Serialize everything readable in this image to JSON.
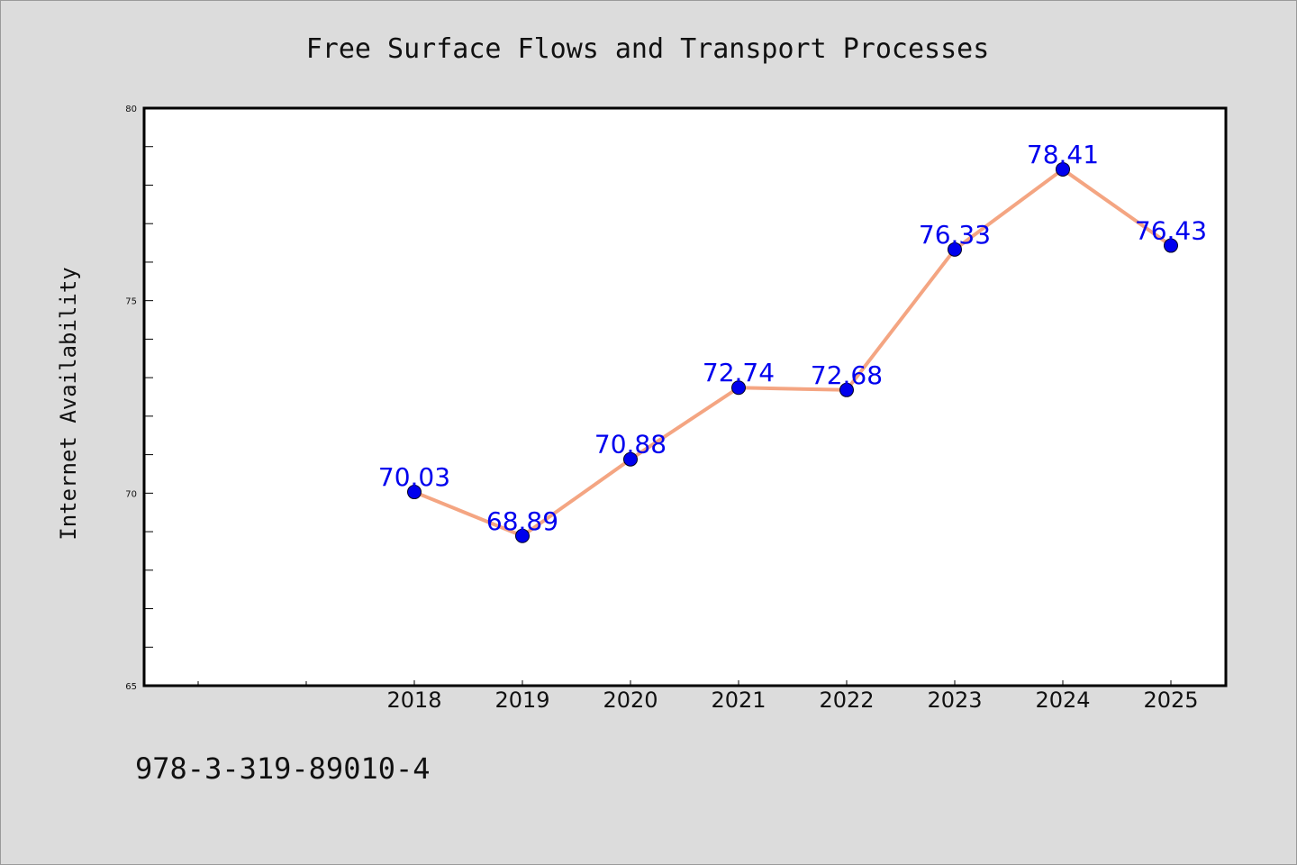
{
  "chart_data": {
    "type": "line",
    "title": "Free Surface Flows and Transport Processes",
    "xlabel": "",
    "ylabel": "Internet Availability",
    "x": [
      "2018",
      "2019",
      "2020",
      "2021",
      "2022",
      "2023",
      "2024",
      "2025"
    ],
    "series": [
      {
        "values": [
          70.03,
          68.89,
          70.88,
          72.74,
          72.68,
          76.33,
          78.41,
          76.43
        ],
        "labels": [
          "70.03",
          "68.89",
          "70.88",
          "72.74",
          "72.68",
          "76.33",
          "78.41",
          "76.43"
        ]
      }
    ],
    "ylim": [
      65,
      80
    ],
    "yticks": [
      "65",
      "70",
      "75",
      "80"
    ],
    "grid": false,
    "legend": "none",
    "colors": {
      "line": "#f4a582",
      "marker": "#0000ee",
      "label": "#0000ee",
      "plot_background": "#ffffff",
      "figure_background": "#dcdcdc"
    }
  },
  "footnote": "978-3-319-89010-4"
}
